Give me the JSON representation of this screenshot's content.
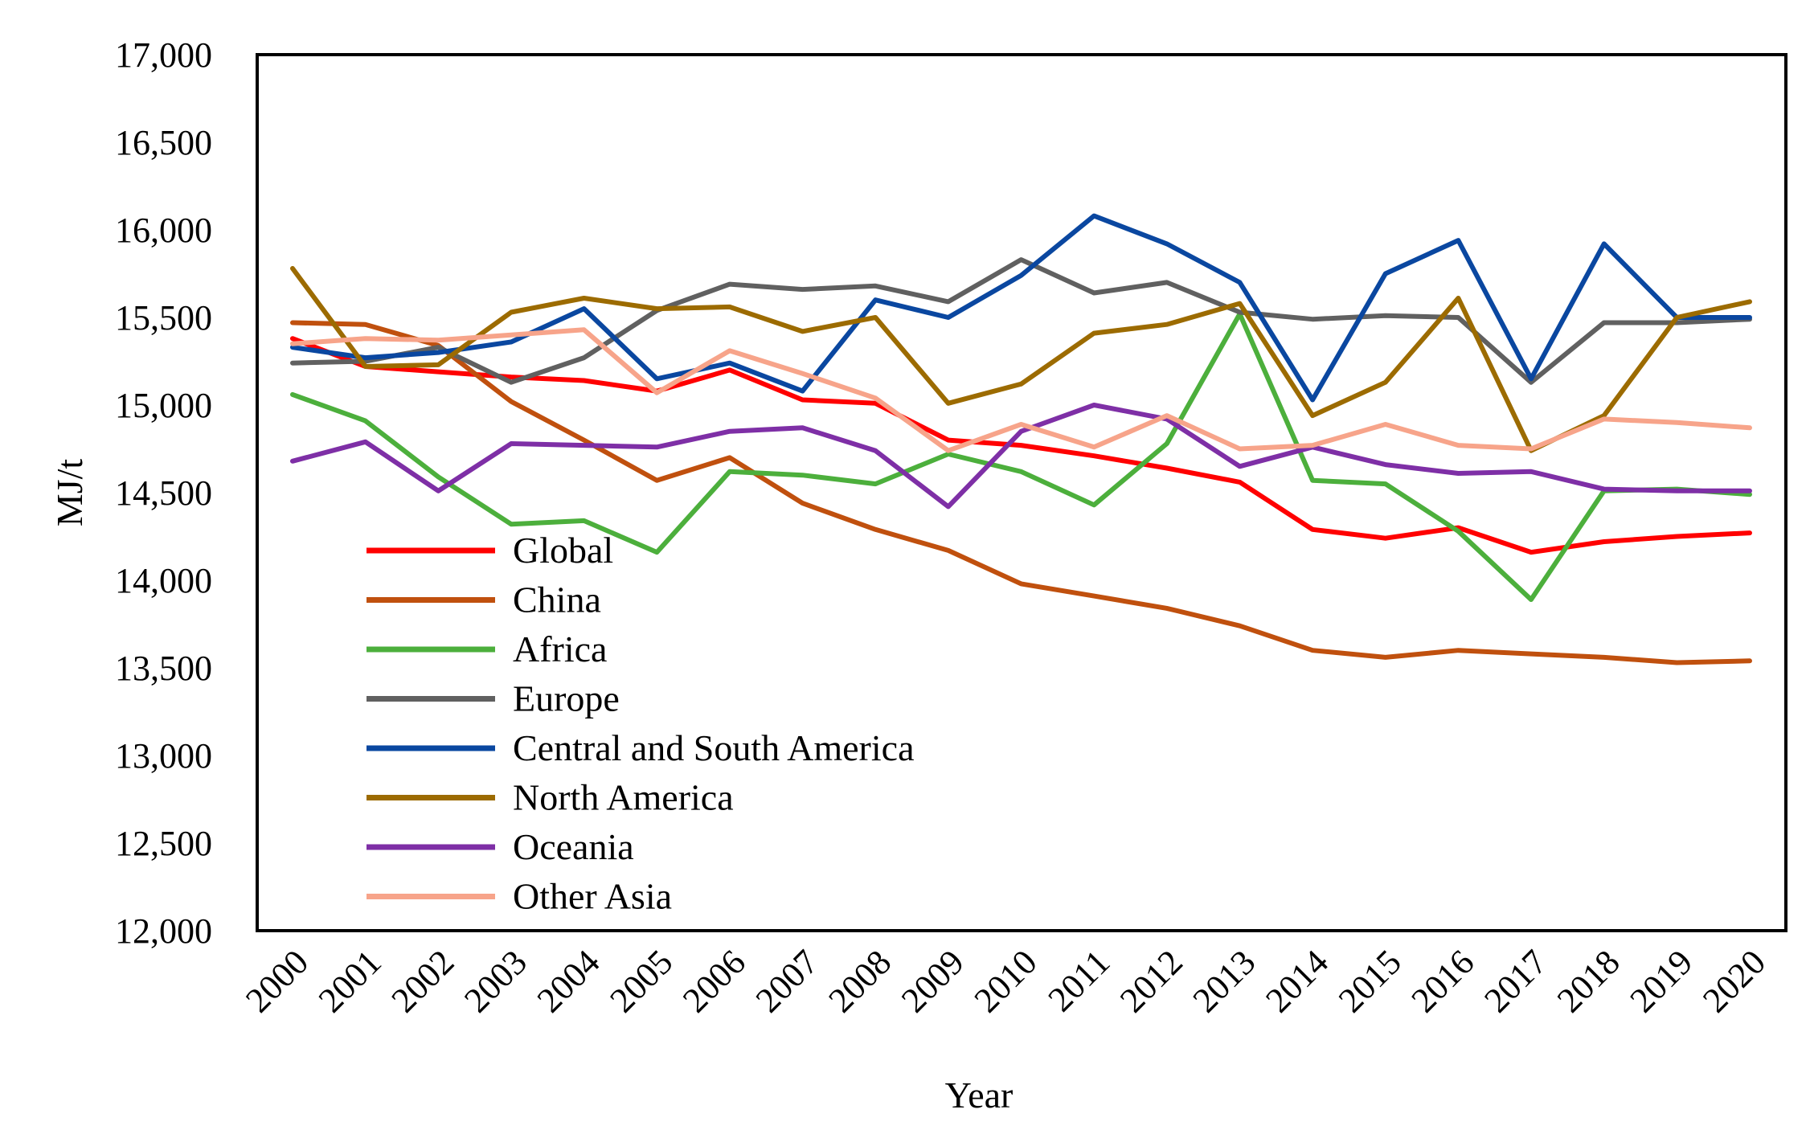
{
  "chart_data": {
    "type": "line",
    "title": "",
    "xlabel": "Year",
    "ylabel": "MJ/t",
    "ylim": [
      12000,
      17000
    ],
    "yticks": [
      12000,
      12500,
      13000,
      13500,
      14000,
      14500,
      15000,
      15500,
      16000,
      16500,
      17000
    ],
    "ytick_labels": [
      "12,000",
      "12,500",
      "13,000",
      "13,500",
      "14,000",
      "14,500",
      "15,000",
      "15,500",
      "16,000",
      "16,500",
      "17,000"
    ],
    "categories": [
      "2000",
      "2001",
      "2002",
      "2003",
      "2004",
      "2005",
      "2006",
      "2007",
      "2008",
      "2009",
      "2010",
      "2011",
      "2012",
      "2013",
      "2014",
      "2015",
      "2016",
      "2017",
      "2018",
      "2019",
      "2020"
    ],
    "grid": false,
    "legend_position": "bottom-left inside plot",
    "series": [
      {
        "name": "Global",
        "color": "#ff0000",
        "values": [
          15380,
          15220,
          15190,
          15160,
          15140,
          15080,
          15200,
          15030,
          15010,
          14800,
          14770,
          14710,
          14640,
          14560,
          14290,
          14240,
          14300,
          14160,
          14220,
          14250,
          14270
        ]
      },
      {
        "name": "China",
        "color": "#c0500e",
        "values": [
          15470,
          15460,
          15340,
          15020,
          14800,
          14570,
          14700,
          14440,
          14290,
          14170,
          13980,
          13910,
          13840,
          13740,
          13600,
          13560,
          13600,
          13580,
          13560,
          13530,
          13540
        ]
      },
      {
        "name": "Africa",
        "color": "#4caf3c",
        "values": [
          15060,
          14910,
          14590,
          14320,
          14340,
          14160,
          14620,
          14600,
          14550,
          14720,
          14620,
          14430,
          14780,
          15520,
          14570,
          14550,
          14280,
          13890,
          14510,
          14520,
          14490
        ]
      },
      {
        "name": "Europe",
        "color": "#606060",
        "values": [
          15240,
          15250,
          15330,
          15130,
          15270,
          15540,
          15690,
          15660,
          15680,
          15590,
          15830,
          15640,
          15700,
          15530,
          15490,
          15510,
          15500,
          15130,
          15470,
          15470,
          15490
        ]
      },
      {
        "name": "Central and South America",
        "color": "#0a47a0",
        "values": [
          15330,
          15270,
          15300,
          15360,
          15550,
          15150,
          15240,
          15080,
          15600,
          15500,
          15740,
          16080,
          15920,
          15700,
          15030,
          15750,
          15940,
          15150,
          15920,
          15500,
          15500
        ]
      },
      {
        "name": "North America",
        "color": "#9c6b00",
        "values": [
          15780,
          15220,
          15230,
          15530,
          15610,
          15550,
          15560,
          15420,
          15500,
          15010,
          15120,
          15410,
          15460,
          15580,
          14940,
          15130,
          15610,
          14740,
          14940,
          15500,
          15590
        ]
      },
      {
        "name": "Oceania",
        "color": "#7e2fa6",
        "values": [
          14680,
          14790,
          14510,
          14780,
          14770,
          14760,
          14850,
          14870,
          14740,
          14420,
          14850,
          15000,
          14920,
          14650,
          14760,
          14660,
          14610,
          14620,
          14520,
          14510,
          14510
        ]
      },
      {
        "name": "Other Asia",
        "color": "#f7a48a",
        "values": [
          15350,
          15380,
          15370,
          15400,
          15430,
          15070,
          15310,
          15180,
          15040,
          14740,
          14890,
          14760,
          14940,
          14750,
          14770,
          14890,
          14770,
          14750,
          14920,
          14900,
          14870
        ]
      }
    ]
  }
}
